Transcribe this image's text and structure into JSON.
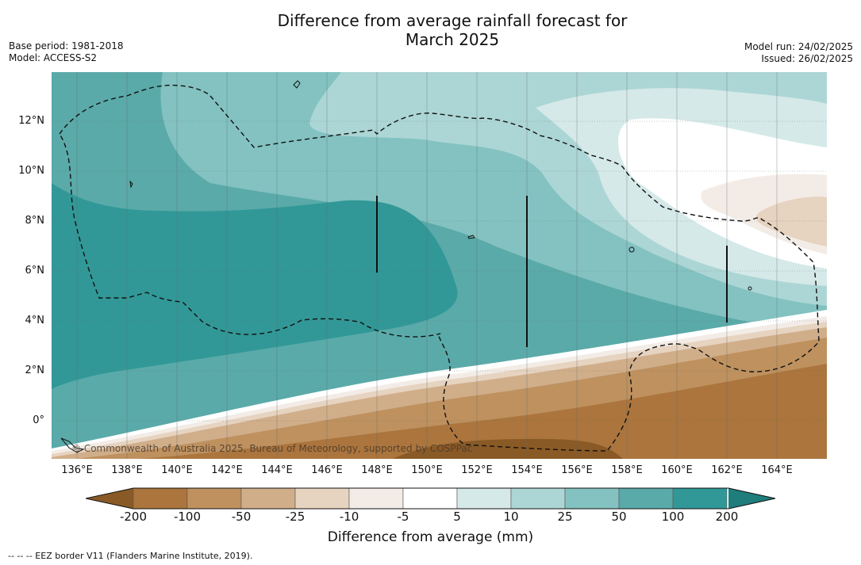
{
  "title": {
    "line1": "Difference from average rainfall forecast for",
    "line2": "March 2025"
  },
  "meta": {
    "base_period": "Base period: 1981-2018",
    "model": "Model: ACCESS-S2",
    "model_run": "Model run: 24/02/2025",
    "issued": "Issued: 26/02/2025"
  },
  "map": {
    "lat_labels": [
      "12°N",
      "10°N",
      "8°N",
      "6°N",
      "4°N",
      "2°N",
      "0°"
    ],
    "lon_labels": [
      "136°E",
      "138°E",
      "140°E",
      "142°E",
      "144°E",
      "146°E",
      "148°E",
      "150°E",
      "152°E",
      "154°E",
      "156°E",
      "158°E",
      "160°E",
      "162°E",
      "164°E"
    ],
    "credit": "© Commonwealth of Australia 2025, Bureau of Meteorology, supported by COSPPac"
  },
  "colorbar": {
    "ticks": [
      "-200",
      "-100",
      "-50",
      "-25",
      "-10",
      "-5",
      "5",
      "10",
      "25",
      "50",
      "100",
      "200"
    ],
    "colors": [
      "#8a5a26",
      "#ab753d",
      "#be915f",
      "#d1ae8a",
      "#e6d3c0",
      "#f3ece6",
      "#ffffff",
      "#d5e9e8",
      "#acd6d5",
      "#83c2c1",
      "#5aaaa9",
      "#319897",
      "#1f7d7b"
    ],
    "label": "Difference from average (mm)"
  },
  "footer": {
    "legend": "--  --  -- EEZ border V11 (Flanders Marine Institute, 2019)."
  }
}
